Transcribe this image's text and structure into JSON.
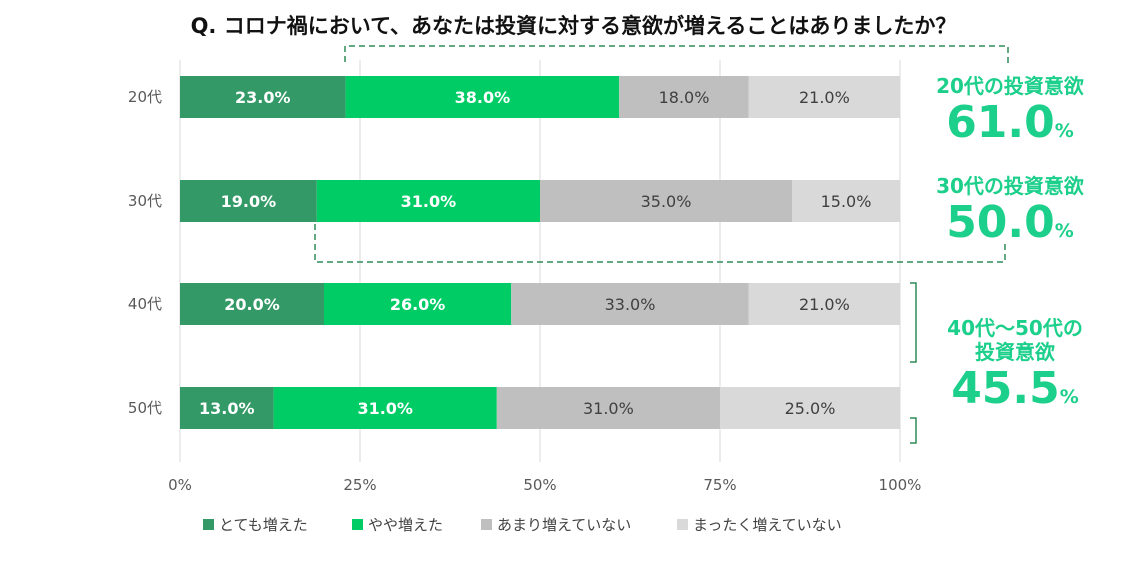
{
  "colors": {
    "series": [
      "#339966",
      "#00cc66",
      "#bfbfbf",
      "#d9d9d9"
    ],
    "accent": "#1ccf8a",
    "axis_text": "#595959",
    "grid": "#d9d9d9",
    "bracket": "#2e8b57"
  },
  "chart_data": {
    "type": "bar",
    "orientation": "horizontal",
    "stacked": true,
    "title": "Q. コロナ禍において、あなたは投資に対する意欲が増えることはありましたか？",
    "categories": [
      "20代",
      "30代",
      "40代",
      "50代"
    ],
    "series": [
      {
        "name": "とても増えた",
        "values": [
          23.0,
          19.0,
          20.0,
          13.0
        ]
      },
      {
        "name": "やや増えた",
        "values": [
          38.0,
          31.0,
          26.0,
          31.0
        ]
      },
      {
        "name": "あまり増えていない",
        "values": [
          18.0,
          35.0,
          33.0,
          31.0
        ]
      },
      {
        "name": "まったく増えていない",
        "values": [
          21.0,
          15.0,
          21.0,
          25.0
        ]
      }
    ],
    "value_labels": [
      [
        "23.0%",
        "38.0%",
        "18.0%",
        "21.0%"
      ],
      [
        "19.0%",
        "31.0%",
        "35.0%",
        "15.0%"
      ],
      [
        "20.0%",
        "26.0%",
        "33.0%",
        "21.0%"
      ],
      [
        "13.0%",
        "31.0%",
        "31.0%",
        "25.0%"
      ]
    ],
    "x_ticks": [
      "0%",
      "25%",
      "50%",
      "75%",
      "100%"
    ],
    "xlim": [
      0,
      100
    ],
    "grid": true,
    "legend_position": "bottom"
  },
  "callouts": [
    {
      "label": "20代の投資意欲",
      "value": "61.0",
      "unit": "%"
    },
    {
      "label": "30代の投資意欲",
      "value": "50.0",
      "unit": "%"
    },
    {
      "label": "40代〜50代の",
      "label2": "投資意欲",
      "value": "45.5",
      "unit": "%"
    }
  ]
}
